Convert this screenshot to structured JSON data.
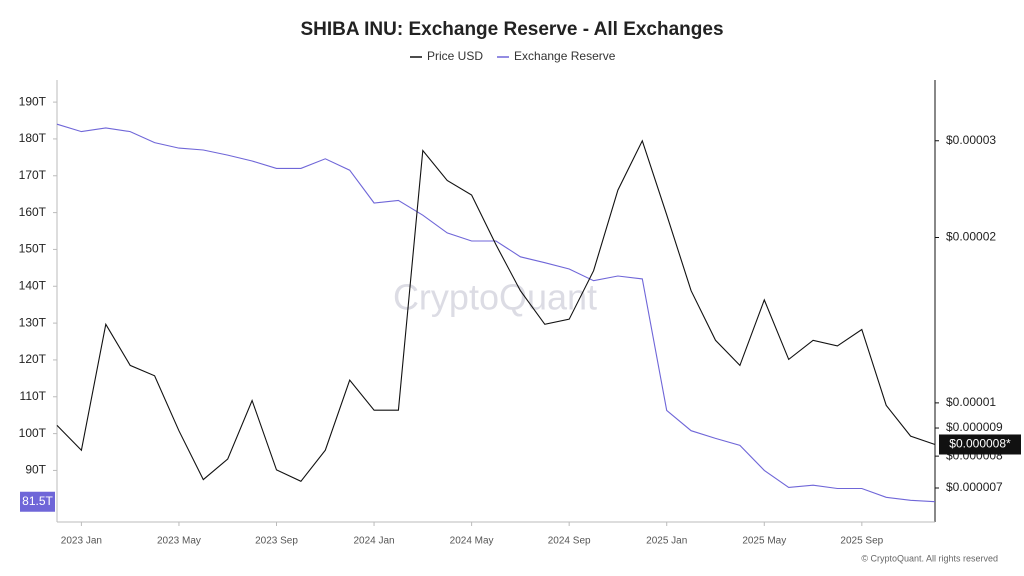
{
  "chart_data": {
    "type": "line",
    "title": "SHIBA INU: Exchange Reserve - All Exchanges",
    "watermark": "CryptoQuant",
    "footer": "© CryptoQuant. All rights reserved",
    "x": [
      "2022-12",
      "2023-01",
      "2023-02",
      "2023-03",
      "2023-04",
      "2023-05",
      "2023-06",
      "2023-07",
      "2023-08",
      "2023-09",
      "2023-10",
      "2023-11",
      "2023-12",
      "2024-01",
      "2024-02",
      "2024-03",
      "2024-04",
      "2024-05",
      "2024-06",
      "2024-07",
      "2024-08",
      "2024-09",
      "2024-10",
      "2024-11",
      "2024-12",
      "2025-01",
      "2025-02",
      "2025-03",
      "2025-04",
      "2025-05",
      "2025-06",
      "2025-07",
      "2025-08",
      "2025-09",
      "2025-10",
      "2025-11",
      "2025-12"
    ],
    "xlim": [
      "2022-12",
      "2025-12"
    ],
    "xticks": [
      {
        "value": "2023-01",
        "label": "2023 Jan"
      },
      {
        "value": "2023-05",
        "label": "2023 May"
      },
      {
        "value": "2023-09",
        "label": "2023 Sep"
      },
      {
        "value": "2024-01",
        "label": "2024 Jan"
      },
      {
        "value": "2024-05",
        "label": "2024 May"
      },
      {
        "value": "2024-09",
        "label": "2024 Sep"
      },
      {
        "value": "2025-01",
        "label": "2025 Jan"
      },
      {
        "value": "2025-05",
        "label": "2025 May"
      },
      {
        "value": "2025-09",
        "label": "2025 Sep"
      }
    ],
    "ylim": [
      76,
      196
    ],
    "yticks": [
      {
        "value": 90,
        "label": "90T"
      },
      {
        "value": 100,
        "label": "100T"
      },
      {
        "value": 110,
        "label": "110T"
      },
      {
        "value": 120,
        "label": "120T"
      },
      {
        "value": 130,
        "label": "130T"
      },
      {
        "value": 140,
        "label": "140T"
      },
      {
        "value": 150,
        "label": "150T"
      },
      {
        "value": 160,
        "label": "160T"
      },
      {
        "value": 170,
        "label": "170T"
      },
      {
        "value": 180,
        "label": "180T"
      },
      {
        "value": 190,
        "label": "190T"
      }
    ],
    "y2lim": [
      6.07e-06,
      3.87e-05
    ],
    "y2scale": "log",
    "y2ticks": [
      {
        "value": 7e-06,
        "label": "$0.000007"
      },
      {
        "value": 8e-06,
        "label": "$0.000008"
      },
      {
        "value": 9e-06,
        "label": "$0.000009"
      },
      {
        "value": 1e-05,
        "label": "$0.00001"
      },
      {
        "value": 2e-05,
        "label": "$0.00002"
      },
      {
        "value": 3e-05,
        "label": "$0.00003"
      }
    ],
    "grid": false,
    "legend": "top",
    "series": [
      {
        "name": "Exchange Reserve",
        "color": "#6f66d8",
        "axis": "y",
        "values": [
          184,
          182,
          183,
          182,
          179,
          177.5,
          177,
          175.6,
          174,
          172,
          172,
          174.6,
          171.5,
          162.6,
          163.3,
          159.3,
          154.5,
          152.3,
          152.3,
          148,
          146.4,
          144.7,
          141.5,
          142.8,
          142,
          106.3,
          100.8,
          98.7,
          96.8,
          90,
          85.4,
          86,
          85.1,
          85.1,
          82.7,
          81.9,
          81.5
        ],
        "value_labels": [
          null,
          null,
          null,
          null,
          null,
          null,
          null,
          null,
          null,
          null,
          null,
          null,
          null,
          null,
          null,
          null,
          null,
          null,
          null,
          null,
          null,
          null,
          null,
          null,
          null,
          null,
          null,
          null,
          null,
          null,
          null,
          null,
          null,
          null,
          null,
          null,
          "81.5T"
        ]
      },
      {
        "name": "Price USD",
        "color": "#111111",
        "axis": "y2",
        "values": [
          9.1e-06,
          8.2e-06,
          1.39e-05,
          1.17e-05,
          1.12e-05,
          8.9e-06,
          7.25e-06,
          7.9e-06,
          1.01e-05,
          7.55e-06,
          7.2e-06,
          8.2e-06,
          1.1e-05,
          9.7e-06,
          9.7e-06,
          2.88e-05,
          2.54e-05,
          2.39e-05,
          1.94e-05,
          1.6e-05,
          1.39e-05,
          1.42e-05,
          1.74e-05,
          2.44e-05,
          3e-05,
          2.2e-05,
          1.6e-05,
          1.3e-05,
          1.17e-05,
          1.54e-05,
          1.2e-05,
          1.3e-05,
          1.27e-05,
          1.36e-05,
          9.9e-06,
          8.7e-06,
          8.4e-06
        ],
        "value_labels": [
          null,
          null,
          null,
          null,
          null,
          null,
          null,
          null,
          null,
          null,
          null,
          null,
          null,
          null,
          null,
          null,
          null,
          null,
          null,
          null,
          null,
          null,
          null,
          null,
          null,
          null,
          null,
          null,
          null,
          null,
          null,
          null,
          null,
          null,
          null,
          null,
          "$0.000008*"
        ]
      }
    ]
  }
}
